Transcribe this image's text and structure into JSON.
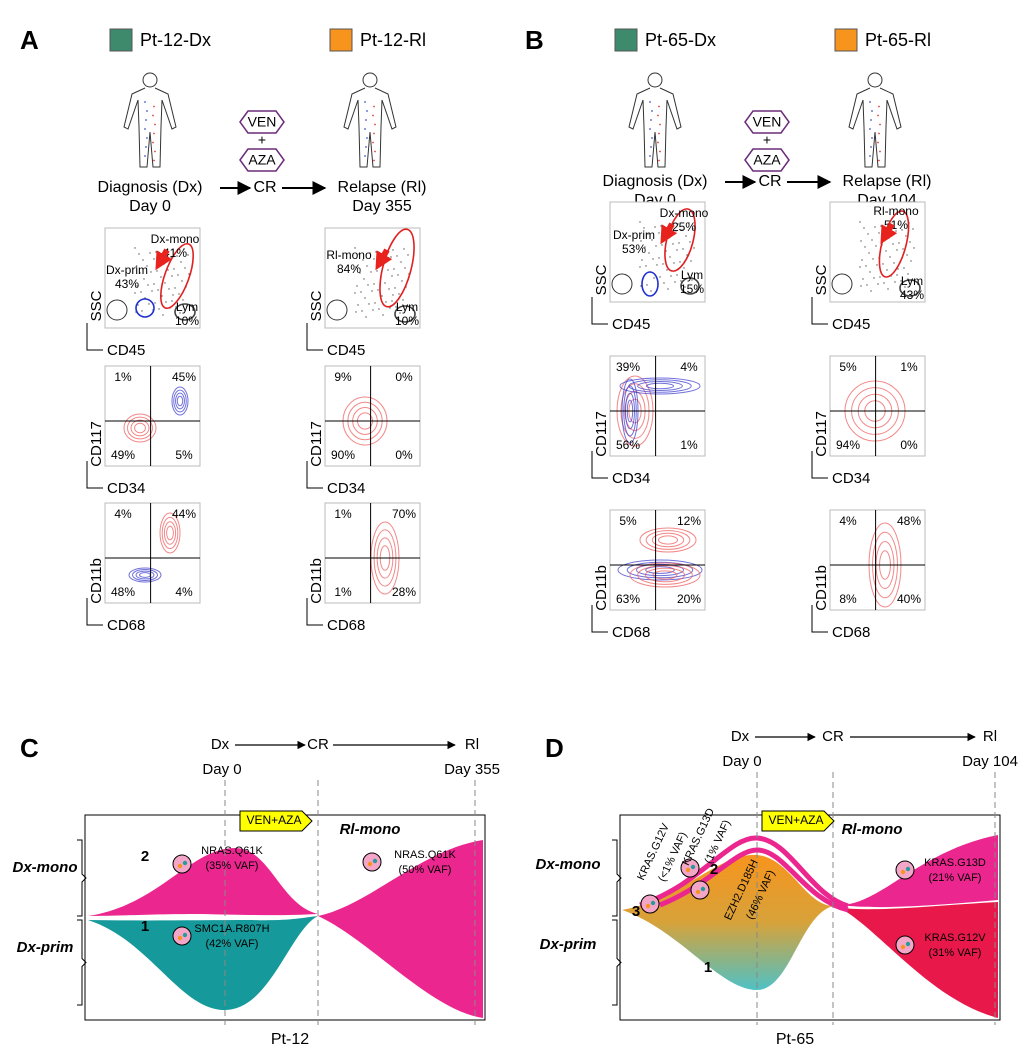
{
  "panels": [
    {
      "letter": "A",
      "patient_dx": "Pt-12-Dx",
      "patient_rl": "Pt-12-Rl",
      "drug": [
        "VEN",
        "+",
        "AZA"
      ],
      "timeline": [
        "Diagnosis (Dx)",
        "CR",
        "Relapse (Rl)"
      ],
      "days": [
        "Day 0",
        "Day 355"
      ],
      "samples": [
        {
          "ssc": "SSC",
          "cd45": "CD45",
          "gates": [
            {
              "label": "Dx-mono",
              "pct": "41%"
            },
            {
              "label": "Dx-prim",
              "pct": "43%"
            },
            {
              "label": "Lym",
              "pct": "10%"
            }
          ],
          "plots": [
            {
              "y": "CD117",
              "x": "CD34",
              "quadrants": [
                "1%",
                "45%",
                "49%",
                "5%"
              ]
            },
            {
              "y": "CD11b",
              "x": "CD68",
              "quadrants": [
                "4%",
                "44%",
                "48%",
                "4%"
              ]
            }
          ]
        },
        {
          "ssc": "SSC",
          "cd45": "CD45",
          "gates": [
            {
              "label": "Rl-mono",
              "pct": "84%"
            },
            {
              "label": "Lym",
              "pct": "10%"
            }
          ],
          "plots": [
            {
              "y": "CD117",
              "x": "CD34",
              "quadrants": [
                "9%",
                "0%",
                "90%",
                "0%"
              ]
            },
            {
              "y": "CD11b",
              "x": "CD68",
              "quadrants": [
                "1%",
                "70%",
                "1%",
                "28%"
              ]
            }
          ]
        }
      ]
    },
    {
      "letter": "B",
      "patient_dx": "Pt-65-Dx",
      "patient_rl": "Pt-65-Rl",
      "drug": [
        "VEN",
        "+",
        "AZA"
      ],
      "timeline": [
        "Diagnosis (Dx)",
        "CR",
        "Relapse (Rl)"
      ],
      "days": [
        "Day 0",
        "Day 104"
      ],
      "samples": [
        {
          "ssc": "SSC",
          "cd45": "CD45",
          "gates": [
            {
              "label": "Dx-mono",
              "pct": "25%"
            },
            {
              "label": "Dx-prim",
              "pct": "53%"
            },
            {
              "label": "Lym",
              "pct": "15%"
            }
          ],
          "plots": [
            {
              "y": "CD117",
              "x": "CD34",
              "quadrants": [
                "39%",
                "4%",
                "56%",
                "1%"
              ]
            },
            {
              "y": "CD11b",
              "x": "CD68",
              "quadrants": [
                "5%",
                "12%",
                "63%",
                "20%"
              ]
            }
          ]
        },
        {
          "ssc": "SSC",
          "cd45": "CD45",
          "gates": [
            {
              "label": "Rl-mono",
              "pct": "51%"
            },
            {
              "label": "Lym",
              "pct": "43%"
            }
          ],
          "plots": [
            {
              "y": "CD117",
              "x": "CD34",
              "quadrants": [
                "5%",
                "1%",
                "94%",
                "0%"
              ]
            },
            {
              "y": "CD11b",
              "x": "CD68",
              "quadrants": [
                "4%",
                "48%",
                "8%",
                "40%"
              ]
            }
          ]
        }
      ]
    }
  ],
  "clonal": [
    {
      "letter": "C",
      "timeline": [
        "Dx",
        "CR",
        "Rl"
      ],
      "days": [
        "Day 0",
        "Day 355"
      ],
      "treatment": "VEN+AZA",
      "rows": [
        "Dx-mono",
        "Dx-prim"
      ],
      "rl_label": "Rl-mono",
      "patient": "Pt-12",
      "clones": [
        {
          "number": "2",
          "mutation": "NRAS.Q61K",
          "vaf": "(35% VAF)"
        },
        {
          "number": "1",
          "mutation": "SMC1A.R807H",
          "vaf": "(42% VAF)"
        },
        {
          "mutation": "NRAS.Q61K",
          "vaf": "(50% VAF)"
        }
      ]
    },
    {
      "letter": "D",
      "timeline": [
        "Dx",
        "CR",
        "Rl"
      ],
      "days": [
        "Day 0",
        "Day 104"
      ],
      "treatment": "VEN+AZA",
      "rows": [
        "Dx-mono",
        "Dx-prim"
      ],
      "rl_label": "Rl-mono",
      "patient": "Pt-65",
      "clones": [
        {
          "number": "3",
          "mutation": "KRAS.G12V",
          "vaf": "(<1% VAF)"
        },
        {
          "number": "2",
          "mutation": "KRAS.G13D",
          "vaf": "(1% VAF)"
        },
        {
          "number": "1",
          "mutation": "EZH2.D185H",
          "vaf": "(46% VAF)"
        },
        {
          "mutation": "KRAS.G13D",
          "vaf": "(21% VAF)"
        },
        {
          "mutation": "KRAS.G12V",
          "vaf": "(31% VAF)"
        }
      ]
    }
  ]
}
